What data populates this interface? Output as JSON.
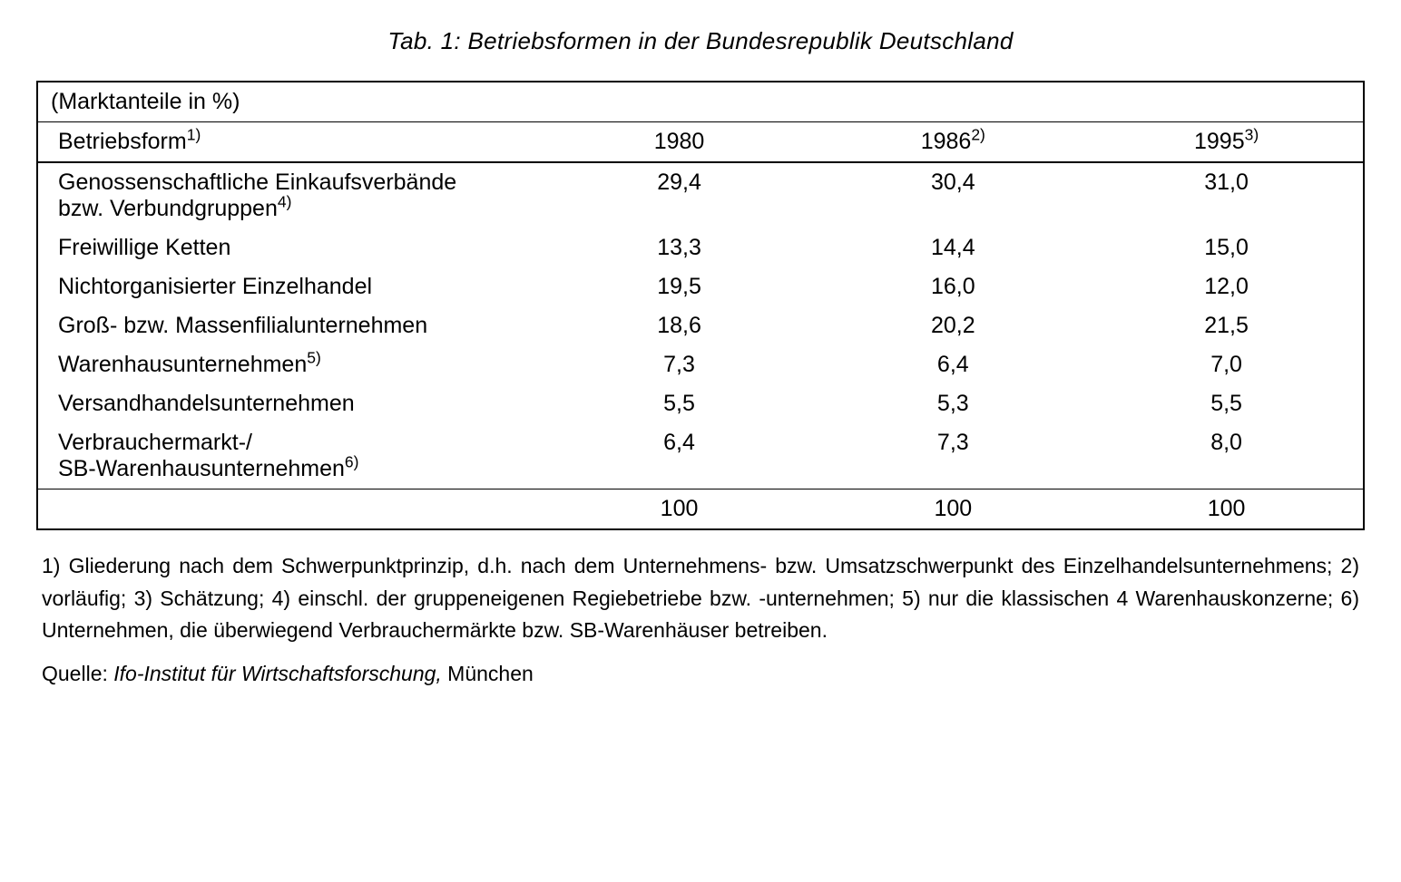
{
  "caption": "Tab. 1: Betriebsformen in der Bundesrepublik Deutschland",
  "table": {
    "subtitle": "(Marktanteile in %)",
    "header": {
      "label": "Betriebsform",
      "label_sup": "1)",
      "col1": "1980",
      "col2": "1986",
      "col2_sup": "2)",
      "col3": "1995",
      "col3_sup": "3)"
    },
    "rows": [
      {
        "label_line1": "Genossenschaftliche Einkaufsverbände",
        "label_line2": "bzw. Verbundgruppen",
        "label_sup": "4)",
        "v1": "29,4",
        "v2": "30,4",
        "v3": "31,0",
        "two_line": true
      },
      {
        "label_line1": "Freiwillige Ketten",
        "label_line2": "",
        "label_sup": "",
        "v1": "13,3",
        "v2": "14,4",
        "v3": "15,0",
        "two_line": false
      },
      {
        "label_line1": "Nichtorganisierter Einzelhandel",
        "label_line2": "",
        "label_sup": "",
        "v1": "19,5",
        "v2": "16,0",
        "v3": "12,0",
        "two_line": false
      },
      {
        "label_line1": "Groß- bzw. Massenfilialunternehmen",
        "label_line2": "",
        "label_sup": "",
        "v1": "18,6",
        "v2": "20,2",
        "v3": "21,5",
        "two_line": false
      },
      {
        "label_line1": "Warenhausunternehmen",
        "label_line2": "",
        "label_sup": "5)",
        "v1": "7,3",
        "v2": "6,4",
        "v3": "7,0",
        "two_line": false
      },
      {
        "label_line1": "Versandhandelsunternehmen",
        "label_line2": "",
        "label_sup": "",
        "v1": "5,5",
        "v2": "5,3",
        "v3": "5,5",
        "two_line": false
      },
      {
        "label_line1": "Verbrauchermarkt-/",
        "label_line2": "SB-Warenhausunternehmen",
        "label_sup": "6)",
        "v1": "6,4",
        "v2": "7,3",
        "v3": "8,0",
        "two_line": true
      }
    ],
    "totals": {
      "v1": "100",
      "v2": "100",
      "v3": "100"
    }
  },
  "footnotes": "1) Gliederung nach dem Schwerpunktprinzip, d.h. nach dem Unternehmens- bzw. Umsatzschwerpunkt des Einzelhandelsunternehmens; 2) vorläufig; 3) Schätzung; 4) einschl. der gruppeneigenen Regiebetriebe bzw. -unternehmen; 5) nur die klassischen 4 Warenhauskonzerne; 6) Unternehmen, die überwiegend Verbraucher­märkte bzw. SB-Warenhäuser betreiben.",
  "source": {
    "label": "Quelle: ",
    "name": "Ifo-Institut für Wirtschaftsforschung,",
    "place": " München"
  }
}
